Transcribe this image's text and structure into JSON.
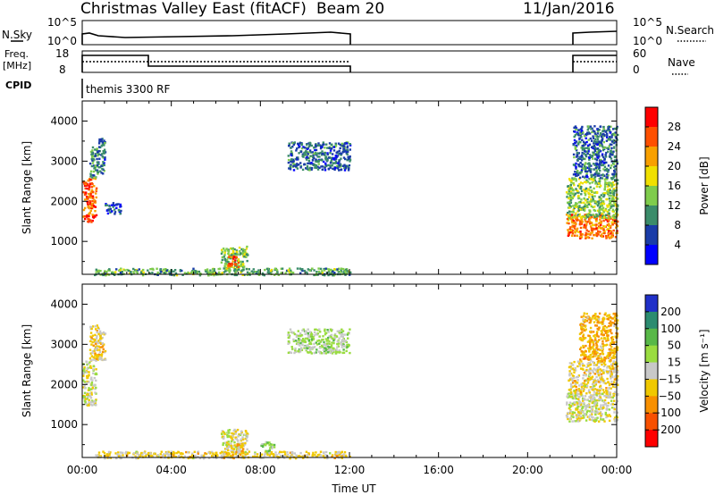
{
  "header": {
    "station": "Christmas Valley East (fitACF)",
    "beam": "Beam 20",
    "date": "11/Jan/2016"
  },
  "summary_panels": {
    "nsky_label": "N.Sky",
    "nsky_ticks": [
      "10^5",
      "10^0"
    ],
    "nsearch_label": "N.Search",
    "nsearch_ticks": [
      "10^5",
      "10^0"
    ],
    "freq_label": "Freq.",
    "freq_unit": "[MHz]",
    "freq_ticks": [
      "18",
      "8"
    ],
    "nave_label": "Nave",
    "nave_ticks": [
      "60",
      "0"
    ],
    "cpid_label": "CPID",
    "cpid_value": "themis 3300 RF"
  },
  "chart_data": [
    {
      "type": "heatmap",
      "title": "",
      "xlabel": "",
      "ylabel": "Slant Range [km]",
      "xlim": [
        0,
        24
      ],
      "ylim": [
        180,
        4500
      ],
      "yticks": [
        "1000",
        "2000",
        "3000",
        "4000"
      ],
      "colorbar": {
        "label": "Power [dB]",
        "ticks": [
          "4",
          "8",
          "12",
          "16",
          "20",
          "24",
          "28"
        ],
        "range": [
          0,
          32
        ],
        "colors": [
          "#0000ff",
          "#1a3ca8",
          "#3b8c6a",
          "#7fcc4c",
          "#f0e000",
          "#f8a000",
          "#ff5000",
          "#ff0000"
        ]
      },
      "regions": [
        {
          "t0": 0.0,
          "t1": 0.6,
          "r0": 1500,
          "r1": 2600,
          "value": 26
        },
        {
          "t0": 0.3,
          "t1": 0.7,
          "r0": 2600,
          "r1": 3400,
          "value": 10
        },
        {
          "t0": 0.7,
          "t1": 1.0,
          "r0": 2700,
          "r1": 3600,
          "value": 8
        },
        {
          "t0": 1.0,
          "t1": 1.7,
          "r0": 1700,
          "r1": 2000,
          "value": 6
        },
        {
          "t0": 6.2,
          "t1": 7.4,
          "r0": 300,
          "r1": 900,
          "value": 14
        },
        {
          "t0": 6.5,
          "t1": 7.0,
          "r0": 350,
          "r1": 650,
          "value": 26
        },
        {
          "t0": 9.2,
          "t1": 12.0,
          "r0": 2800,
          "r1": 3500,
          "value": 8
        },
        {
          "t0": 0.5,
          "t1": 12.0,
          "r0": 180,
          "r1": 350,
          "value": 12
        },
        {
          "t0": 21.7,
          "t1": 24.0,
          "r0": 1100,
          "r1": 1700,
          "value": 24
        },
        {
          "t0": 21.7,
          "t1": 24.0,
          "r0": 1600,
          "r1": 2600,
          "value": 14
        },
        {
          "t0": 22.0,
          "t1": 24.0,
          "r0": 2600,
          "r1": 3900,
          "value": 8
        }
      ]
    },
    {
      "type": "heatmap",
      "title": "",
      "xlabel": "Time UT",
      "ylabel": "Slant Range [km]",
      "xlim": [
        0,
        24
      ],
      "ylim": [
        180,
        4500
      ],
      "xticks": [
        "00:00",
        "04:00",
        "08:00",
        "12:00",
        "16:00",
        "20:00",
        "00:00"
      ],
      "yticks": [
        "1000",
        "2000",
        "3000",
        "4000"
      ],
      "colorbar": {
        "label": "Velocity [m s⁻¹]",
        "ticks": [
          "200",
          "100",
          "50",
          "15",
          "−15",
          "−50",
          "−100",
          "−200"
        ],
        "range": [
          -250,
          250
        ],
        "colors": [
          "#2030c8",
          "#2c8c70",
          "#58b848",
          "#9adc40",
          "#c8c8c8",
          "#f0c800",
          "#f89000",
          "#f85000",
          "#ff0000"
        ]
      },
      "regions": [
        {
          "t0": 0.0,
          "t1": 0.6,
          "r0": 1500,
          "r1": 2600,
          "value": 0
        },
        {
          "t0": 0.3,
          "t1": 1.0,
          "r0": 2600,
          "r1": 3500,
          "value": -40
        },
        {
          "t0": 6.2,
          "t1": 7.4,
          "r0": 300,
          "r1": 900,
          "value": 0
        },
        {
          "t0": 6.5,
          "t1": 7.2,
          "r0": 250,
          "r1": 550,
          "value": -60
        },
        {
          "t0": 8.0,
          "t1": 8.6,
          "r0": 300,
          "r1": 600,
          "value": 60
        },
        {
          "t0": 9.2,
          "t1": 12.0,
          "r0": 2800,
          "r1": 3400,
          "value": 40
        },
        {
          "t0": 0.5,
          "t1": 12.0,
          "r0": 180,
          "r1": 350,
          "value": -30
        },
        {
          "t0": 21.7,
          "t1": 24.0,
          "r0": 1100,
          "r1": 1800,
          "value": 0
        },
        {
          "t0": 21.8,
          "t1": 24.0,
          "r0": 1800,
          "r1": 2600,
          "value": -30
        },
        {
          "t0": 22.3,
          "t1": 24.0,
          "r0": 2600,
          "r1": 3800,
          "value": -80
        }
      ]
    }
  ]
}
